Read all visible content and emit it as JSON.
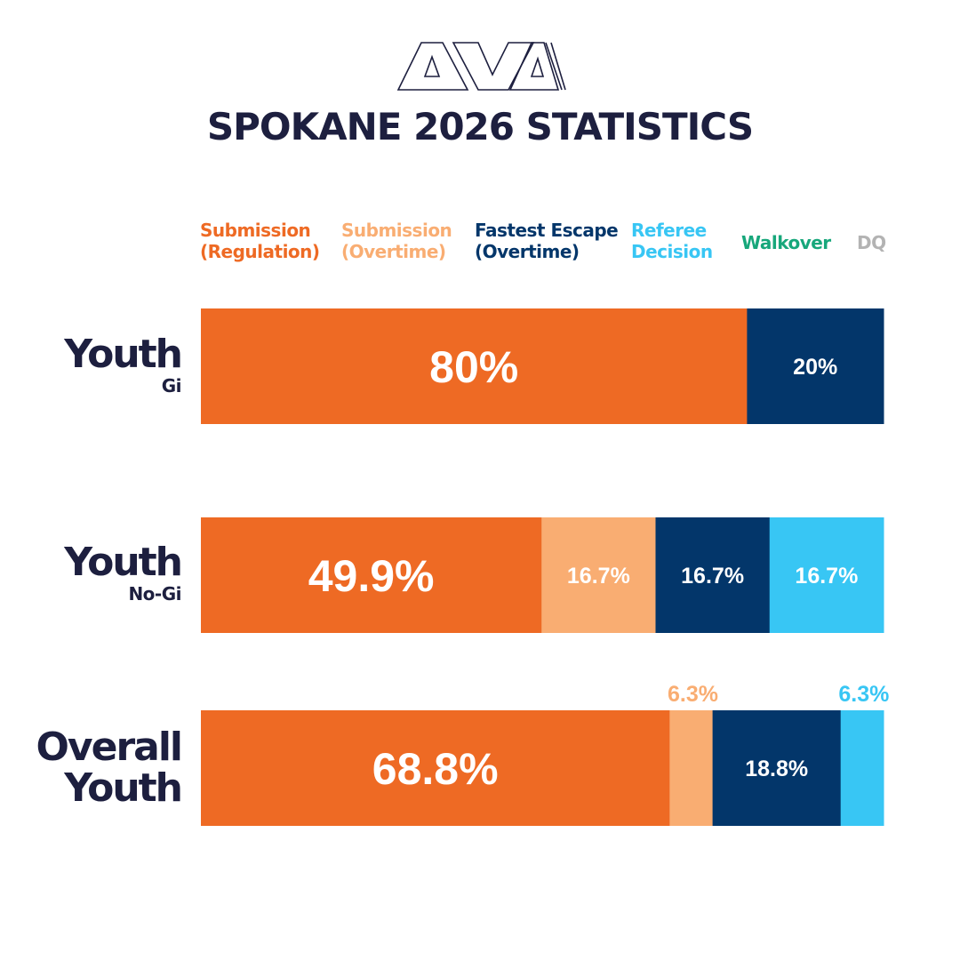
{
  "brand": {
    "logo_text": "AVA",
    "color": "#1d1f3f"
  },
  "title": "SPOKANE 2026 STATISTICS",
  "legend": [
    {
      "key": "sub_reg",
      "lines": [
        "Submission",
        "(Regulation)"
      ],
      "color": "#ee6a24"
    },
    {
      "key": "sub_ot",
      "lines": [
        "Submission",
        "(Overtime)"
      ],
      "color": "#f9ad72"
    },
    {
      "key": "escape_ot",
      "lines": [
        "Fastest Escape",
        "(Overtime)"
      ],
      "color": "#03366a"
    },
    {
      "key": "ref",
      "lines": [
        "Referee",
        "Decision"
      ],
      "color": "#38c6f4"
    },
    {
      "key": "walkover",
      "lines": [
        "Walkover"
      ],
      "color": "#17a77b"
    },
    {
      "key": "dq",
      "lines": [
        "DQ"
      ],
      "color": "#b3b3b3"
    }
  ],
  "rows": [
    {
      "main": "Youth",
      "sub": "Gi"
    },
    {
      "main": "Youth",
      "sub": "No-Gi"
    },
    {
      "main": "Overall",
      "sub": "Youth"
    }
  ],
  "chart_data": {
    "type": "bar",
    "orientation": "horizontal",
    "stacked": true,
    "percent": true,
    "categories": [
      "Youth Gi",
      "Youth No-Gi",
      "Overall Youth"
    ],
    "series": [
      {
        "name": "Submission (Regulation)",
        "key": "sub_reg",
        "values": [
          80,
          49.9,
          68.8
        ],
        "labels": [
          "80%",
          "49.9%",
          "68.8%"
        ]
      },
      {
        "name": "Submission (Overtime)",
        "key": "sub_ot",
        "values": [
          0,
          16.7,
          6.3
        ],
        "labels": [
          "",
          "16.7%",
          "6.3%"
        ]
      },
      {
        "name": "Fastest Escape (Overtime)",
        "key": "escape_ot",
        "values": [
          20,
          16.7,
          18.8
        ],
        "labels": [
          "20%",
          "16.7%",
          "18.8%"
        ]
      },
      {
        "name": "Referee Decision",
        "key": "ref",
        "values": [
          0,
          16.7,
          6.3
        ],
        "labels": [
          "",
          "16.7%",
          "6.3%"
        ]
      },
      {
        "name": "Walkover",
        "key": "walkover",
        "values": [
          0,
          0,
          0
        ],
        "labels": [
          "",
          "",
          ""
        ]
      },
      {
        "name": "DQ",
        "key": "dq",
        "values": [
          0,
          0,
          0
        ],
        "labels": [
          "",
          "",
          ""
        ]
      }
    ],
    "xlim": [
      0,
      100
    ],
    "grid": false,
    "legend": "top"
  }
}
